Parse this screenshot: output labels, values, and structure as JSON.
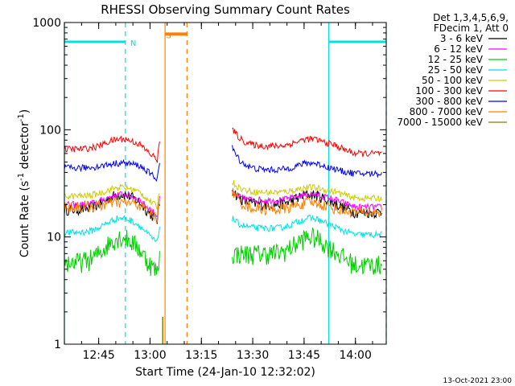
{
  "chart_data": {
    "type": "line",
    "title": "RHESSI Observing Summary Count Rates",
    "xlabel": "Start Time (24-Jan-10 12:32:02)",
    "ylabel_main": "Count Rate (s",
    "ylabel_sup1": "-1",
    "ylabel_mid": " detector",
    "ylabel_sup2": "-1",
    "ylabel_end": ")",
    "x_range_min": [
      12.583,
      14.15
    ],
    "y_range": [
      1,
      1000
    ],
    "y_scale": "log",
    "x_ticks": [
      {
        "label": "12:45",
        "min": 12.75
      },
      {
        "label": "13:00",
        "min": 13.0
      },
      {
        "label": "13:15",
        "min": 13.25
      },
      {
        "label": "13:30",
        "min": 13.5
      },
      {
        "label": "13:45",
        "min": 13.75
      },
      {
        "label": "14:00",
        "min": 14.0
      }
    ],
    "y_ticks": [
      {
        "label": "1",
        "v": 1
      },
      {
        "label": "10",
        "v": 10
      },
      {
        "label": "100",
        "v": 100
      },
      {
        "label": "1000",
        "v": 1000
      }
    ],
    "legend_header": [
      "Det 1,3,4,5,6,9,",
      "FDecim 1, Att 0"
    ],
    "series": [
      {
        "name": "3 - 6 keV",
        "color": "#000000",
        "values": {
          "a": 18,
          "b": 25,
          "c": 20,
          "e": 17,
          "gap_pre": 19,
          "bump_start": 28,
          "bump_end": 20
        }
      },
      {
        "name": "6 - 12 keV",
        "color": "#ff00ff",
        "values": {
          "a": 20,
          "b": 25,
          "c": 22,
          "e": 19,
          "gap_pre": 21,
          "bump_start": 26,
          "bump_end": 21
        }
      },
      {
        "name": "12 - 25 keV",
        "color": "#00cc00",
        "values": {
          "a": 5.8,
          "b": 10,
          "c": 7,
          "e": 5.5,
          "gap_pre": 7,
          "bump_start": 7,
          "bump_end": 6
        }
      },
      {
        "name": "25 - 50 keV",
        "color": "#00e0e0",
        "values": {
          "a": 11,
          "b": 15,
          "c": 12,
          "e": 10.5,
          "gap_pre": 12,
          "bump_start": 15,
          "bump_end": 11
        }
      },
      {
        "name": "50 - 100 keV",
        "color": "#cccc00",
        "values": {
          "a": 24,
          "b": 29,
          "c": 26,
          "e": 23,
          "gap_pre": 25,
          "bump_start": 33,
          "bump_end": 24
        }
      },
      {
        "name": "100 - 300 keV",
        "color": "#ff0000",
        "values": {
          "a": 66,
          "b": 82,
          "c": 70,
          "e": 60,
          "gap_pre": 70,
          "bump_start": 104,
          "bump_end": 62
        }
      },
      {
        "name": "300 - 800 keV",
        "color": "#0000ff",
        "values": {
          "a": 44,
          "b": 49,
          "c": 42,
          "e": 39,
          "gap_pre": 42,
          "bump_start": 68,
          "bump_end": 40
        }
      },
      {
        "name": "800 - 7000 keV",
        "color": "#ff8000",
        "values": {
          "a": 19,
          "b": 21,
          "c": 18,
          "e": 17,
          "gap_pre": 17,
          "bump_start": 27,
          "bump_end": 18
        }
      },
      {
        "name": "7000 - 15000 keV",
        "color": "#808000",
        "values": {
          "a": null,
          "b": null,
          "c": null,
          "e": null,
          "gap_pre": 1.8,
          "bump_start": null,
          "bump_end": null
        }
      }
    ],
    "annotations": [
      {
        "text": "N",
        "color": "#00e0e0",
        "x_min": 12.88,
        "y": 660
      },
      {
        "text": "S",
        "color": "#ff8000",
        "x_min": 13.055,
        "y": 780
      }
    ],
    "night_bars": {
      "color": "#00e0e0",
      "y": 660,
      "ranges": [
        [
          12.583,
          12.88
        ],
        [
          13.87,
          14.15
        ]
      ]
    },
    "saa_bar": {
      "color": "#ff8000",
      "y": 780,
      "range": [
        13.073,
        13.18
      ]
    },
    "vlines": [
      {
        "color": "#00e0e0",
        "style": "solid",
        "x_min": 12.583
      },
      {
        "color": "#00e0e0",
        "style": "dashed",
        "x_min": 12.88
      },
      {
        "color": "#ff8000",
        "style": "solid",
        "x_min": 13.073
      },
      {
        "color": "#ff8000",
        "style": "dashed",
        "x_min": 13.18
      },
      {
        "color": "#00e0e0",
        "style": "solid",
        "x_min": 13.87
      },
      {
        "color": "#00e0e0",
        "style": "dashed",
        "x_min": 14.15
      }
    ],
    "gap_min": [
      13.05,
      13.4
    ],
    "data_range_min": [
      12.583,
      14.13
    ],
    "footer_date": "13-Oct-2021 23:00"
  }
}
